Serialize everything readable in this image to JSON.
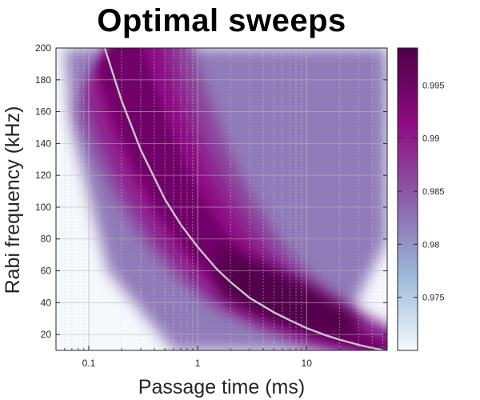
{
  "chart_data": {
    "type": "heatmap",
    "title": "Optimal sweeps",
    "xlabel": "Passage time (ms)",
    "ylabel": "Rabi frequency (kHz)",
    "x_scale": "log",
    "xlim": [
      0.05,
      55
    ],
    "ylim": [
      10,
      200
    ],
    "x_ticks": [
      {
        "value": 0.1,
        "label": "0.1"
      },
      {
        "value": 1,
        "label": "1"
      },
      {
        "value": 10,
        "label": "10"
      }
    ],
    "y_ticks": [
      20,
      40,
      60,
      80,
      100,
      120,
      140,
      160,
      180,
      200
    ],
    "grid": true,
    "colorbar": {
      "range": [
        0.97,
        0.9985
      ],
      "ticks": [
        0.975,
        0.98,
        0.985,
        0.99,
        0.995
      ],
      "tick_labels": [
        "0.975",
        "0.98",
        "0.985",
        "0.99",
        "0.995"
      ],
      "colors": [
        "#f5f9fc",
        "#9ab8d8",
        "#8c5fab",
        "#8e0b82",
        "#4d0048"
      ]
    },
    "optimal_curve": {
      "color": "#c8c8c8",
      "points": [
        {
          "x": 0.14,
          "y": 200
        },
        {
          "x": 0.2,
          "y": 167
        },
        {
          "x": 0.3,
          "y": 136
        },
        {
          "x": 0.5,
          "y": 105
        },
        {
          "x": 0.7,
          "y": 89
        },
        {
          "x": 1,
          "y": 75
        },
        {
          "x": 1.5,
          "y": 61
        },
        {
          "x": 2,
          "y": 53
        },
        {
          "x": 3,
          "y": 43
        },
        {
          "x": 5,
          "y": 34
        },
        {
          "x": 7,
          "y": 29
        },
        {
          "x": 10,
          "y": 24
        },
        {
          "x": 15,
          "y": 19.5
        },
        {
          "x": 20,
          "y": 16.8
        },
        {
          "x": 30,
          "y": 13.5
        },
        {
          "x": 40,
          "y": 11.5
        },
        {
          "x": 50,
          "y": 10.3
        }
      ]
    },
    "description_of_field": {
      "peak_value": 0.998,
      "peak_region": {
        "x": [
          2,
          20
        ],
        "y": [
          20,
          50
        ]
      },
      "background_value": 0.97
    }
  }
}
